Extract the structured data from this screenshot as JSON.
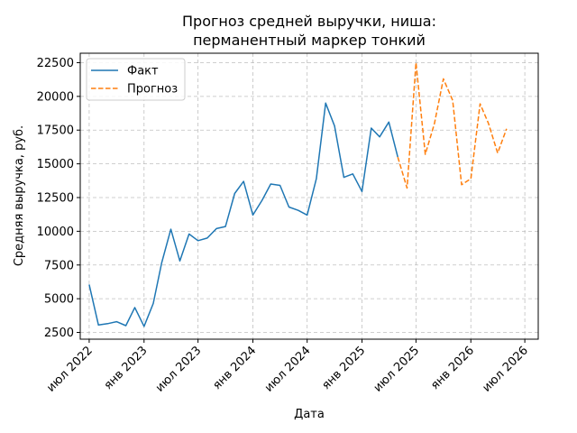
{
  "chart_data": {
    "type": "line",
    "title_lines": [
      "Прогноз средней выручки, ниша:",
      "перманентный маркер тонкий"
    ],
    "xlabel": "Дата",
    "ylabel": "Средняя выручка, руб.",
    "ylim": [
      2000,
      23200
    ],
    "xlim": [
      "2022-06-01",
      "2026-08-15"
    ],
    "grid": true,
    "legend_position": "top-left",
    "x_ticks": [
      {
        "date": "2022-07-01",
        "label": "июл 2022"
      },
      {
        "date": "2023-01-01",
        "label": "янв 2023"
      },
      {
        "date": "2023-07-01",
        "label": "июл 2023"
      },
      {
        "date": "2024-01-01",
        "label": "янв 2024"
      },
      {
        "date": "2024-07-01",
        "label": "июл 2024"
      },
      {
        "date": "2025-01-01",
        "label": "янв 2025"
      },
      {
        "date": "2025-07-01",
        "label": "июл 2025"
      },
      {
        "date": "2026-01-01",
        "label": "янв 2026"
      },
      {
        "date": "2026-07-01",
        "label": "июл 2026"
      }
    ],
    "y_ticks": [
      2500,
      5000,
      7500,
      10000,
      12500,
      15000,
      17500,
      20000,
      22500
    ],
    "series": [
      {
        "name": "Факт",
        "color": "#1f77b4",
        "style": "solid",
        "x": [
          "2022-07-01",
          "2022-08-01",
          "2022-09-01",
          "2022-10-01",
          "2022-11-01",
          "2022-12-01",
          "2023-01-01",
          "2023-02-01",
          "2023-03-01",
          "2023-04-01",
          "2023-05-01",
          "2023-06-01",
          "2023-07-01",
          "2023-08-01",
          "2023-09-01",
          "2023-10-01",
          "2023-11-01",
          "2023-12-01",
          "2024-01-01",
          "2024-02-01",
          "2024-03-01",
          "2024-04-01",
          "2024-05-01",
          "2024-06-01",
          "2024-07-01",
          "2024-08-01",
          "2024-09-01",
          "2024-10-01",
          "2024-11-01",
          "2024-12-01",
          "2025-01-01",
          "2025-02-01",
          "2025-03-01",
          "2025-04-01",
          "2025-05-01"
        ],
        "y": [
          6050,
          3050,
          3150,
          3300,
          3000,
          4350,
          2950,
          4650,
          7650,
          10150,
          7800,
          9800,
          9300,
          9500,
          10200,
          10350,
          12800,
          13700,
          11200,
          12300,
          13500,
          13400,
          11800,
          11550,
          11200,
          13900,
          19500,
          17800,
          14000,
          14250,
          12950,
          17650,
          17000,
          18100,
          15500
        ]
      },
      {
        "name": "Прогноз",
        "color": "#ff7f0e",
        "style": "dashed",
        "x": [
          "2025-05-01",
          "2025-06-01",
          "2025-07-01",
          "2025-08-01",
          "2025-09-01",
          "2025-10-01",
          "2025-11-01",
          "2025-12-01",
          "2026-01-01",
          "2026-02-01",
          "2026-03-01",
          "2026-04-01",
          "2026-05-01"
        ],
        "y": [
          15500,
          13200,
          22500,
          15700,
          18000,
          21300,
          19700,
          13450,
          13900,
          19450,
          18000,
          15800,
          17600
        ]
      }
    ]
  }
}
